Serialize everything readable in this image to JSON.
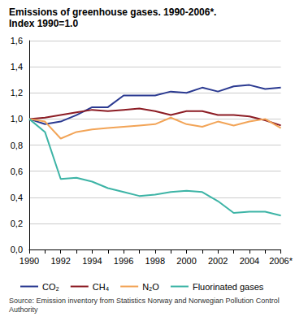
{
  "chart_data": {
    "type": "line",
    "title": "Emissions of greenhouse gases. 1990-2006*.",
    "subtitle": "Index 1990=1.0",
    "annotations": [
      "Source: Emission inventory from Statistics Norway and Norwegian Pollution Control Authority"
    ],
    "categories": [
      "1990",
      null,
      "1992",
      null,
      "1994",
      null,
      "1996",
      null,
      "1998",
      null,
      "2000",
      null,
      "2002",
      null,
      "2004",
      null,
      "2006*"
    ],
    "series": [
      {
        "name": "CO₂",
        "color": "#2b3a91",
        "values": [
          1.0,
          0.96,
          0.98,
          1.03,
          1.09,
          1.09,
          1.18,
          1.18,
          1.18,
          1.21,
          1.2,
          1.24,
          1.21,
          1.25,
          1.26,
          1.23,
          1.24
        ]
      },
      {
        "name": "CH₄",
        "color": "#8c1c24",
        "values": [
          1.0,
          1.01,
          1.03,
          1.05,
          1.07,
          1.06,
          1.07,
          1.08,
          1.06,
          1.03,
          1.06,
          1.06,
          1.03,
          1.03,
          1.02,
          0.99,
          0.95
        ]
      },
      {
        "name": "N₂O",
        "color": "#f2a457",
        "values": [
          1.0,
          0.98,
          0.85,
          0.9,
          0.92,
          0.93,
          0.94,
          0.95,
          0.96,
          1.01,
          0.96,
          0.94,
          0.98,
          0.95,
          0.98,
          1.0,
          0.93
        ]
      },
      {
        "name": "Fluorinated gases",
        "color": "#3db4a6",
        "values": [
          1.0,
          0.9,
          0.54,
          0.55,
          0.52,
          0.47,
          0.44,
          0.41,
          0.42,
          0.44,
          0.45,
          0.44,
          0.37,
          0.28,
          0.29,
          0.29,
          0.26
        ]
      }
    ],
    "ylim": [
      0,
      1.6
    ],
    "yticks": [
      {
        "value": 0,
        "label": "0,0"
      },
      {
        "value": 0.2,
        "label": "0,2"
      },
      {
        "value": 0.4,
        "label": "0,4"
      },
      {
        "value": 0.6,
        "label": "0,6"
      },
      {
        "value": 0.8,
        "label": "0,8"
      },
      {
        "value": 1.0,
        "label": "1,0"
      },
      {
        "value": 1.2,
        "label": "1,2"
      },
      {
        "value": 1.4,
        "label": "1,4"
      },
      {
        "value": 1.6,
        "label": "1,6"
      }
    ],
    "grid": true,
    "legend": "bottom",
    "marker": "none",
    "line_style": "solid"
  }
}
